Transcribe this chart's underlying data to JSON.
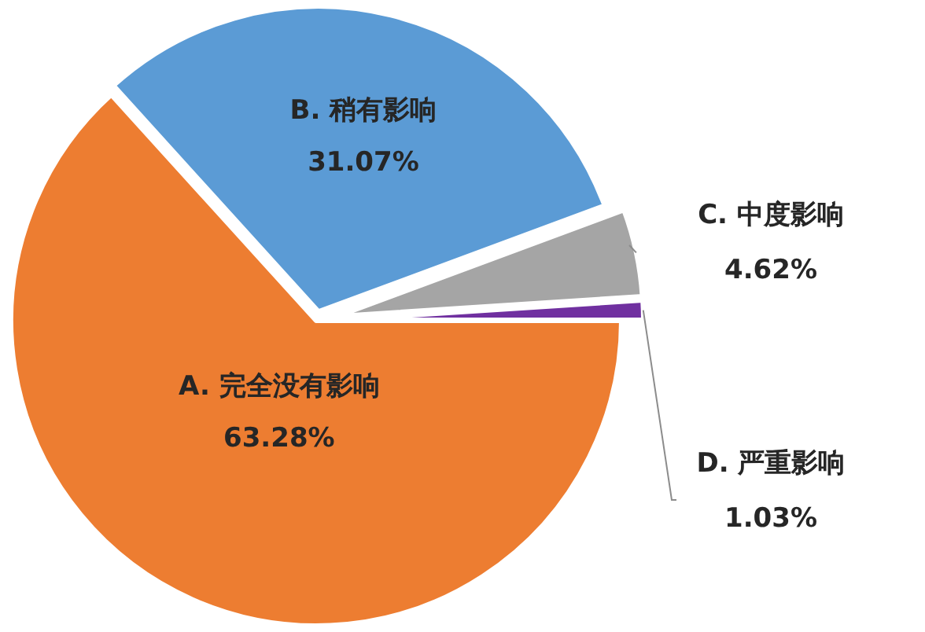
{
  "chart_data": {
    "type": "pie",
    "categories": [
      "A. 完全没有影响",
      "B. 稍有影响",
      "C. 中度影响",
      "D. 严重影响"
    ],
    "values": [
      63.28,
      31.07,
      4.62,
      1.03
    ],
    "value_labels": [
      "63.28%",
      "31.07%",
      "4.62%",
      "1.03%"
    ],
    "colors": [
      "#ed7d31",
      "#5b9bd5",
      "#a5a5a5",
      "#7030a0"
    ]
  }
}
